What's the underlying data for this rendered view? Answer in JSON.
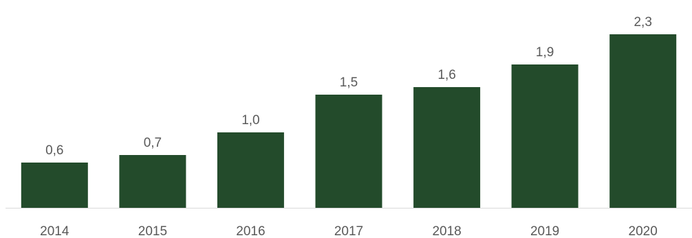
{
  "chart_data": {
    "type": "bar",
    "categories": [
      "2014",
      "2015",
      "2016",
      "2017",
      "2018",
      "2019",
      "2020"
    ],
    "values": [
      0.6,
      0.7,
      1.0,
      1.5,
      1.6,
      1.9,
      2.3
    ],
    "data_labels": [
      "0,6",
      "0,7",
      "1,0",
      "1,5",
      "1,6",
      "1,9",
      "2,3"
    ],
    "title": "",
    "xlabel": "",
    "ylabel": "",
    "ylim": [
      0,
      2.3
    ],
    "grid": false,
    "legend": "none",
    "bar_color": "#234b2b",
    "axis_color": "#d9d9d9",
    "text_color": "#595959"
  }
}
